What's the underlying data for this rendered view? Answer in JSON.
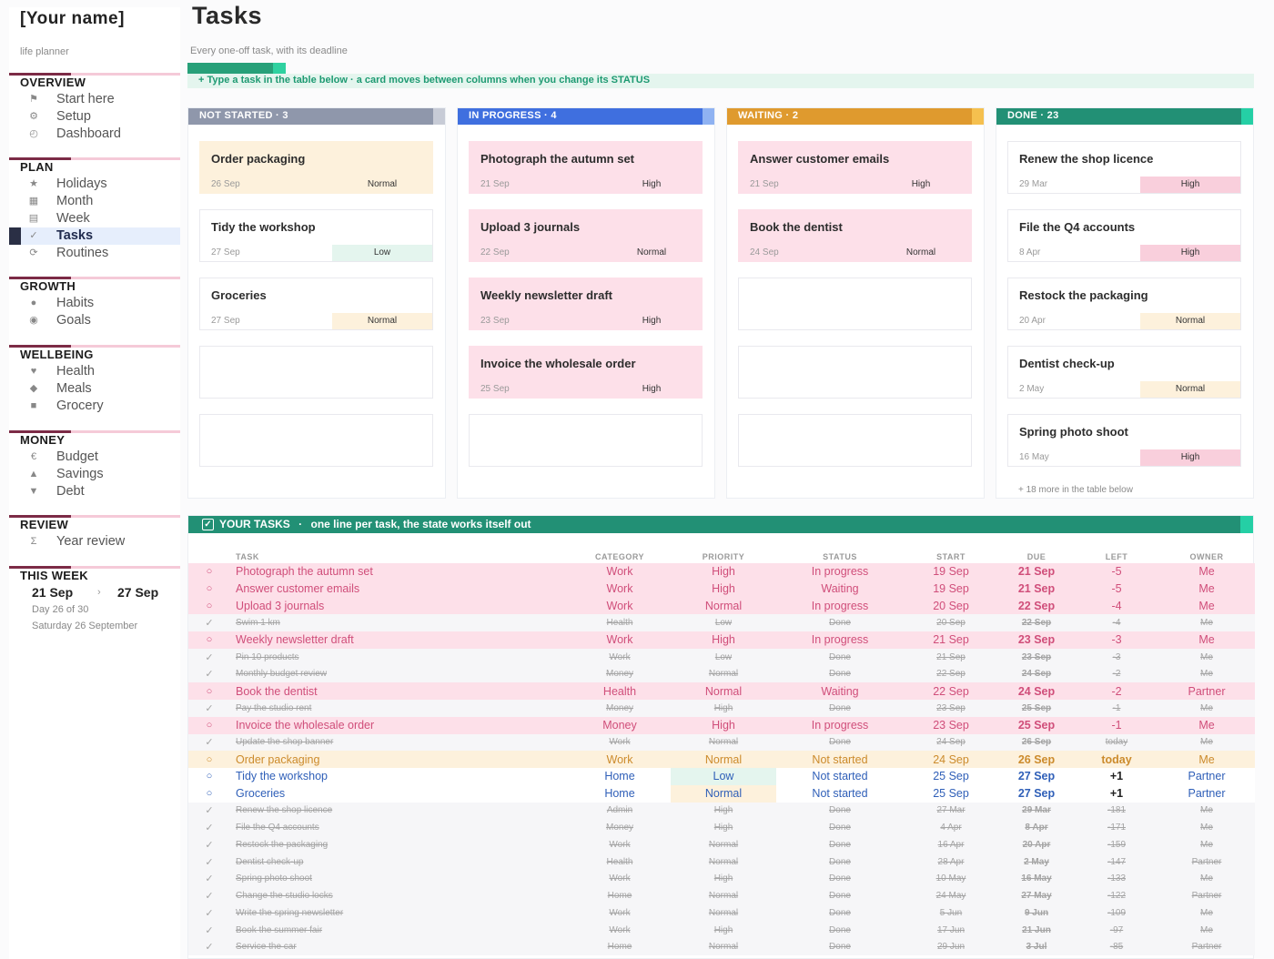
{
  "sidebar": {
    "name": "[Your name]",
    "subtitle": "life planner",
    "sections": [
      {
        "title": "OVERVIEW",
        "items": [
          {
            "label": "Start here",
            "icon": "flag-icon",
            "glyph": "⚑"
          },
          {
            "label": "Setup",
            "icon": "gear-icon",
            "glyph": "⚙"
          },
          {
            "label": "Dashboard",
            "icon": "gauge-icon",
            "glyph": "◴"
          }
        ]
      },
      {
        "title": "PLAN",
        "items": [
          {
            "label": "Holidays",
            "icon": "star-icon",
            "glyph": "★"
          },
          {
            "label": "Month",
            "icon": "calendar-grid-icon",
            "glyph": "▦"
          },
          {
            "label": "Week",
            "icon": "week-icon",
            "glyph": "▤"
          },
          {
            "label": "Tasks",
            "icon": "check-icon",
            "glyph": "✓",
            "active": true
          },
          {
            "label": "Routines",
            "icon": "refresh-icon",
            "glyph": "⟳"
          }
        ]
      },
      {
        "title": "GROWTH",
        "items": [
          {
            "label": "Habits",
            "icon": "circle-icon",
            "glyph": "●"
          },
          {
            "label": "Goals",
            "icon": "target-icon",
            "glyph": "◉"
          }
        ]
      },
      {
        "title": "WELLBEING",
        "items": [
          {
            "label": "Health",
            "icon": "heart-icon",
            "glyph": "♥"
          },
          {
            "label": "Meals",
            "icon": "diamond-icon",
            "glyph": "◆"
          },
          {
            "label": "Grocery",
            "icon": "square-icon",
            "glyph": "■"
          }
        ]
      },
      {
        "title": "MONEY",
        "items": [
          {
            "label": "Budget",
            "icon": "euro-icon",
            "glyph": "€"
          },
          {
            "label": "Savings",
            "icon": "triangle-up-icon",
            "glyph": "▲"
          },
          {
            "label": "Debt",
            "icon": "triangle-down-icon",
            "glyph": "▼"
          }
        ]
      },
      {
        "title": "REVIEW",
        "items": [
          {
            "label": "Year review",
            "icon": "sigma-icon",
            "glyph": "Σ"
          }
        ]
      }
    ],
    "this_week": {
      "title": "THIS WEEK",
      "start": "21 Sep",
      "sep": "›",
      "end": "27 Sep",
      "day": "Day 26 of 30",
      "date": "Saturday 26 September"
    }
  },
  "page": {
    "title": "Tasks",
    "description": "Every one-off task, with its deadline",
    "tip": "+ Type a task in the table below · a card moves between columns when you change its STATUS"
  },
  "board": [
    {
      "title": "NOT STARTED · 3",
      "color": "#8f97ab",
      "tab": "#c7cbd6",
      "cards": [
        {
          "title": "Order packaging",
          "date": "26 Sep",
          "priority": "Normal",
          "bg": "#fdf1dc",
          "pbg": "#fdf1dc"
        },
        {
          "title": "Tidy the workshop",
          "date": "27 Sep",
          "priority": "Low",
          "bg": "#ffffff",
          "pbg": "#e4f5ee"
        },
        {
          "title": "Groceries",
          "date": "27 Sep",
          "priority": "Normal",
          "bg": "#ffffff",
          "pbg": "#fdf1dc"
        },
        {
          "title": "",
          "date": "",
          "priority": "",
          "bg": "#ffffff",
          "pbg": "#ffffff"
        },
        {
          "title": "",
          "date": "",
          "priority": "",
          "bg": "#ffffff",
          "pbg": "#ffffff"
        }
      ]
    },
    {
      "title": "IN PROGRESS · 4",
      "color": "#3f6fdf",
      "tab": "#8fb2f2",
      "cards": [
        {
          "title": "Photograph the autumn set",
          "date": "21 Sep",
          "priority": "High",
          "bg": "#fde0e9",
          "pbg": "#fde0e9"
        },
        {
          "title": "Upload 3 journals",
          "date": "22 Sep",
          "priority": "Normal",
          "bg": "#fde0e9",
          "pbg": "#fde0e9"
        },
        {
          "title": "Weekly newsletter draft",
          "date": "23 Sep",
          "priority": "High",
          "bg": "#fde0e9",
          "pbg": "#fde0e9"
        },
        {
          "title": "Invoice the wholesale order",
          "date": "25 Sep",
          "priority": "High",
          "bg": "#fde0e9",
          "pbg": "#fde0e9"
        },
        {
          "title": "",
          "date": "",
          "priority": "",
          "bg": "#ffffff",
          "pbg": "#ffffff"
        }
      ]
    },
    {
      "title": "WAITING · 2",
      "color": "#df9a2e",
      "tab": "#f5c04f",
      "cards": [
        {
          "title": "Answer customer emails",
          "date": "21 Sep",
          "priority": "High",
          "bg": "#fde0e9",
          "pbg": "#fde0e9"
        },
        {
          "title": "Book the dentist",
          "date": "24 Sep",
          "priority": "Normal",
          "bg": "#fde0e9",
          "pbg": "#fde0e9"
        },
        {
          "title": "",
          "date": "",
          "priority": "",
          "bg": "#ffffff",
          "pbg": "#ffffff"
        },
        {
          "title": "",
          "date": "",
          "priority": "",
          "bg": "#ffffff",
          "pbg": "#ffffff"
        },
        {
          "title": "",
          "date": "",
          "priority": "",
          "bg": "#ffffff",
          "pbg": "#ffffff"
        }
      ]
    },
    {
      "title": "DONE · 23",
      "color": "#229075",
      "tab": "#25cfa5",
      "more": "+ 18 more in the table below",
      "cards": [
        {
          "title": "Renew the shop licence",
          "date": "29 Mar",
          "priority": "High",
          "bg": "#ffffff",
          "pbg": "#f9cfdc"
        },
        {
          "title": "File the Q4 accounts",
          "date": "8 Apr",
          "priority": "High",
          "bg": "#ffffff",
          "pbg": "#f9cfdc"
        },
        {
          "title": "Restock the packaging",
          "date": "20 Apr",
          "priority": "Normal",
          "bg": "#ffffff",
          "pbg": "#fdf1dc"
        },
        {
          "title": "Dentist check-up",
          "date": "2 May",
          "priority": "Normal",
          "bg": "#ffffff",
          "pbg": "#fdf1dc"
        },
        {
          "title": "Spring photo shoot",
          "date": "16 May",
          "priority": "High",
          "bg": "#ffffff",
          "pbg": "#f9cfdc"
        }
      ]
    }
  ],
  "your_tasks": {
    "title": "YOUR TASKS",
    "separator": "·",
    "subtitle": "one line per task, the state works itself out",
    "checkbox": "✓",
    "columns": [
      "",
      "TASK",
      "CATEGORY",
      "PRIORITY",
      "STATUS",
      "START",
      "DUE",
      "LEFT",
      "OWNER"
    ],
    "rows": [
      {
        "s": "high",
        "m": "○",
        "t": "Photograph the autumn set",
        "c": "Work",
        "p": "High",
        "st": "In progress",
        "a": "19 Sep",
        "d": "21 Sep",
        "l": "-5",
        "o": "Me"
      },
      {
        "s": "high",
        "m": "○",
        "t": "Answer customer emails",
        "c": "Work",
        "p": "High",
        "st": "Waiting",
        "a": "19 Sep",
        "d": "21 Sep",
        "l": "-5",
        "o": "Me"
      },
      {
        "s": "high",
        "m": "○",
        "t": "Upload 3 journals",
        "c": "Work",
        "p": "Normal",
        "st": "In progress",
        "a": "20 Sep",
        "d": "22 Sep",
        "l": "-4",
        "o": "Me"
      },
      {
        "s": "done",
        "m": "✓",
        "t": "Swim 1 km",
        "c": "Health",
        "p": "Low",
        "st": "Done",
        "a": "20 Sep",
        "d": "22 Sep",
        "l": "-4",
        "o": "Me"
      },
      {
        "s": "high",
        "m": "○",
        "t": "Weekly newsletter draft",
        "c": "Work",
        "p": "High",
        "st": "In progress",
        "a": "21 Sep",
        "d": "23 Sep",
        "l": "-3",
        "o": "Me"
      },
      {
        "s": "done",
        "m": "✓",
        "t": "Pin 10 products",
        "c": "Work",
        "p": "Low",
        "st": "Done",
        "a": "21 Sep",
        "d": "23 Sep",
        "l": "-3",
        "o": "Me"
      },
      {
        "s": "done",
        "m": "✓",
        "t": "Monthly budget review",
        "c": "Money",
        "p": "Normal",
        "st": "Done",
        "a": "22 Sep",
        "d": "24 Sep",
        "l": "-2",
        "o": "Me"
      },
      {
        "s": "high",
        "m": "○",
        "t": "Book the dentist",
        "c": "Health",
        "p": "Normal",
        "st": "Waiting",
        "a": "22 Sep",
        "d": "24 Sep",
        "l": "-2",
        "o": "Partner"
      },
      {
        "s": "done",
        "m": "✓",
        "t": "Pay the studio rent",
        "c": "Money",
        "p": "High",
        "st": "Done",
        "a": "23 Sep",
        "d": "25 Sep",
        "l": "-1",
        "o": "Me"
      },
      {
        "s": "high",
        "m": "○",
        "t": "Invoice the wholesale order",
        "c": "Money",
        "p": "High",
        "st": "In progress",
        "a": "23 Sep",
        "d": "25 Sep",
        "l": "-1",
        "o": "Me"
      },
      {
        "s": "done",
        "m": "✓",
        "t": "Update the shop banner",
        "c": "Work",
        "p": "Normal",
        "st": "Done",
        "a": "24 Sep",
        "d": "26 Sep",
        "l": "today",
        "o": "Me"
      },
      {
        "s": "ns",
        "m": "○",
        "t": "Order packaging",
        "c": "Work",
        "p": "Normal",
        "st": "Not started",
        "a": "24 Sep",
        "d": "26 Sep",
        "l": "today",
        "o": "Me"
      },
      {
        "s": "open",
        "m": "○",
        "t": "Tidy the workshop",
        "c": "Home",
        "p": "Low",
        "st": "Not started",
        "a": "25 Sep",
        "d": "27 Sep",
        "l": "+1",
        "o": "Partner",
        "pc": "pl"
      },
      {
        "s": "open",
        "m": "○",
        "t": "Groceries",
        "c": "Home",
        "p": "Normal",
        "st": "Not started",
        "a": "25 Sep",
        "d": "27 Sep",
        "l": "+1",
        "o": "Partner",
        "pc": "pn"
      },
      {
        "s": "done",
        "m": "✓",
        "t": "Renew the shop licence",
        "c": "Admin",
        "p": "High",
        "st": "Done",
        "a": "27 Mar",
        "d": "29 Mar",
        "l": "-181",
        "o": "Me"
      },
      {
        "s": "done",
        "m": "✓",
        "t": "File the Q4 accounts",
        "c": "Money",
        "p": "High",
        "st": "Done",
        "a": "4 Apr",
        "d": "8 Apr",
        "l": "-171",
        "o": "Me"
      },
      {
        "s": "done",
        "m": "✓",
        "t": "Restock the packaging",
        "c": "Work",
        "p": "Normal",
        "st": "Done",
        "a": "16 Apr",
        "d": "20 Apr",
        "l": "-159",
        "o": "Me"
      },
      {
        "s": "done",
        "m": "✓",
        "t": "Dentist check-up",
        "c": "Health",
        "p": "Normal",
        "st": "Done",
        "a": "28 Apr",
        "d": "2 May",
        "l": "-147",
        "o": "Partner"
      },
      {
        "s": "done",
        "m": "✓",
        "t": "Spring photo shoot",
        "c": "Work",
        "p": "High",
        "st": "Done",
        "a": "10 May",
        "d": "16 May",
        "l": "-133",
        "o": "Me"
      },
      {
        "s": "done",
        "m": "✓",
        "t": "Change the studio locks",
        "c": "Home",
        "p": "Normal",
        "st": "Done",
        "a": "24 May",
        "d": "27 May",
        "l": "-122",
        "o": "Partner"
      },
      {
        "s": "done",
        "m": "✓",
        "t": "Write the spring newsletter",
        "c": "Work",
        "p": "Normal",
        "st": "Done",
        "a": "5 Jun",
        "d": "9 Jun",
        "l": "-109",
        "o": "Me"
      },
      {
        "s": "done",
        "m": "✓",
        "t": "Book the summer fair",
        "c": "Work",
        "p": "High",
        "st": "Done",
        "a": "17 Jun",
        "d": "21 Jun",
        "l": "-97",
        "o": "Me"
      },
      {
        "s": "done",
        "m": "✓",
        "t": "Service the car",
        "c": "Home",
        "p": "Normal",
        "st": "Done",
        "a": "29 Jun",
        "d": "3 Jul",
        "l": "-85",
        "o": "Partner"
      }
    ]
  }
}
